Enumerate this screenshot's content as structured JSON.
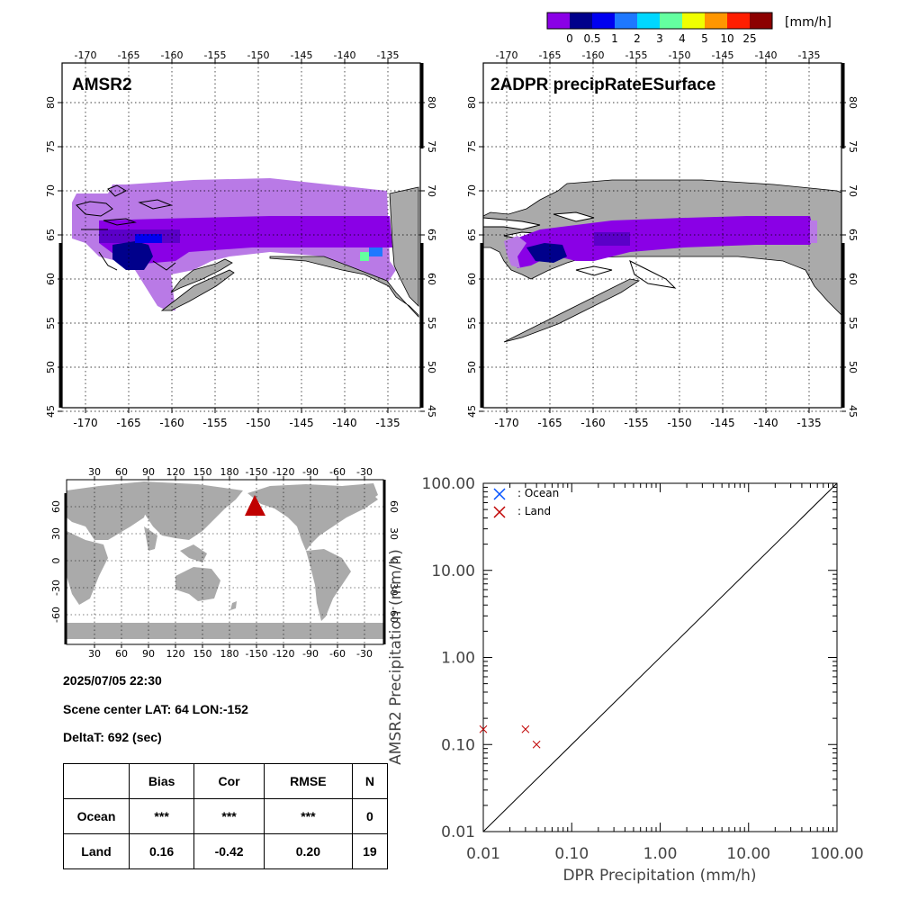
{
  "colorbar": {
    "unit": "[mm/h]",
    "colors": [
      "#8a00e6",
      "#00008b",
      "#0000f0",
      "#1e78ff",
      "#00d7ff",
      "#64ffa0",
      "#f0ff00",
      "#ff9600",
      "#ff1e00",
      "#8c0000"
    ],
    "labels": [
      "0",
      "0.5",
      "1",
      "2",
      "3",
      "4",
      "5",
      "10",
      "25"
    ]
  },
  "maps": {
    "left_title": "AMSR2",
    "right_title": "2ADPR precipRateESurface",
    "lon_ticks": [
      "-170",
      "-165",
      "-160",
      "-155",
      "-150",
      "-145",
      "-140",
      "-135"
    ],
    "lat_ticks": [
      "80",
      "75",
      "70",
      "65",
      "60",
      "55",
      "50",
      "45"
    ],
    "land_color": "#aaaaaa",
    "light_purple": "#b97ae6",
    "purple": "#8a00e6",
    "dark_blue": "#00008b"
  },
  "globe": {
    "lon_ticks": [
      "30",
      "60",
      "90",
      "120",
      "150",
      "180",
      "-150",
      "-120",
      "-90",
      "-60",
      "-30"
    ],
    "lat_ticks": [
      "60",
      "30",
      "0",
      "-30",
      "-60"
    ],
    "marker_color": "#c00000"
  },
  "info": {
    "datetime": "2025/07/05 22:30",
    "scene_center": "Scene center LAT: 64   LON:-152",
    "delta_t": "DeltaT:  692 (sec)"
  },
  "stats": {
    "headers": [
      "Bias",
      "Cor",
      "RMSE",
      "N"
    ],
    "ocean": {
      "label": "Ocean",
      "bias": "***",
      "cor": "***",
      "rmse": "***",
      "n": "0"
    },
    "land": {
      "label": "Land",
      "bias": "0.16",
      "cor": "-0.42",
      "rmse": "0.20",
      "n": "19"
    }
  },
  "chart_data": {
    "type": "scatter",
    "xlabel": "DPR Precipitation (mm/h)",
    "ylabel": "AMSR2 Precipitation (mm/h)",
    "xlim": [
      0.01,
      100
    ],
    "ylim": [
      0.01,
      100
    ],
    "scale": "log",
    "tick_labels": [
      "0.01",
      "0.10",
      "1.00",
      "10.00",
      "100.00"
    ],
    "legend_position": "top-left",
    "series": [
      {
        "name": ": Ocean",
        "color": "#0050ff",
        "points": []
      },
      {
        "name": ": Land",
        "color": "#c00000",
        "points": [
          [
            0.01,
            0.15
          ],
          [
            0.03,
            0.15
          ],
          [
            0.04,
            0.1
          ]
        ]
      }
    ]
  }
}
